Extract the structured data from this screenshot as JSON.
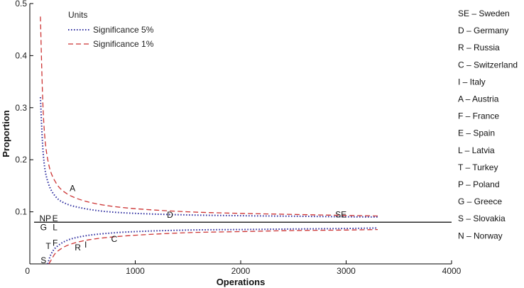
{
  "chart_data": {
    "type": "line",
    "title": "",
    "xlabel": "Operations",
    "ylabel": "Proportion",
    "xlim": [
      0,
      4000
    ],
    "ylim": [
      0,
      0.5
    ],
    "x_ticks": [
      0,
      1000,
      2000,
      3000,
      4000
    ],
    "y_ticks": [
      0.1,
      0.2,
      0.3,
      0.4,
      0.5
    ],
    "reference_line": 0.08,
    "legend_title": "Units",
    "legend_position": "top-left",
    "series": [
      {
        "name": "Significance 5%",
        "style": "dotted",
        "color": "#2a2a9e",
        "upper": {
          "x": [
            100,
            130,
            175,
            250,
            350,
            500,
            700,
            1000,
            1500,
            2000,
            2500,
            3000,
            3300
          ],
          "y": [
            0.32,
            0.205,
            0.155,
            0.128,
            0.115,
            0.107,
            0.101,
            0.097,
            0.094,
            0.0925,
            0.0915,
            0.0905,
            0.09
          ]
        },
        "lower": {
          "x": [
            170,
            200,
            250,
            350,
            500,
            700,
            1000,
            1500,
            2000,
            2500,
            3000,
            3300
          ],
          "y": [
            0.0,
            0.018,
            0.032,
            0.045,
            0.053,
            0.058,
            0.062,
            0.065,
            0.066,
            0.067,
            0.068,
            0.069
          ]
        }
      },
      {
        "name": "Significance 1%",
        "style": "dashed",
        "color": "#cc3333",
        "upper": {
          "x": [
            100,
            130,
            175,
            250,
            350,
            500,
            700,
            1000,
            1500,
            2000,
            2500,
            3000,
            3300
          ],
          "y": [
            0.475,
            0.28,
            0.195,
            0.155,
            0.135,
            0.122,
            0.113,
            0.106,
            0.1,
            0.097,
            0.095,
            0.093,
            0.092
          ]
        },
        "lower": {
          "x": [
            180,
            210,
            250,
            350,
            500,
            700,
            1000,
            1500,
            2000,
            2500,
            3000,
            3300
          ],
          "y": [
            0.0,
            0.01,
            0.022,
            0.035,
            0.044,
            0.05,
            0.055,
            0.06,
            0.062,
            0.064,
            0.065,
            0.066
          ]
        }
      }
    ],
    "points": [
      {
        "label": "SE",
        "x": 2950,
        "y": 0.095
      },
      {
        "label": "D",
        "x": 1330,
        "y": 0.094
      },
      {
        "label": "A",
        "x": 405,
        "y": 0.145
      },
      {
        "label": "N",
        "x": 120,
        "y": 0.087
      },
      {
        "label": "P",
        "x": 175,
        "y": 0.087
      },
      {
        "label": "E",
        "x": 240,
        "y": 0.087
      },
      {
        "label": "G",
        "x": 130,
        "y": 0.07
      },
      {
        "label": "L",
        "x": 240,
        "y": 0.07
      },
      {
        "label": "C",
        "x": 800,
        "y": 0.048
      },
      {
        "label": "I",
        "x": 530,
        "y": 0.037
      },
      {
        "label": "R",
        "x": 455,
        "y": 0.031
      },
      {
        "label": "F",
        "x": 240,
        "y": 0.04
      },
      {
        "label": "T",
        "x": 175,
        "y": 0.034
      },
      {
        "label": "S",
        "x": 130,
        "y": 0.007
      }
    ]
  },
  "key": [
    "SE – Sweden",
    "D – Germany",
    "R – Russia",
    "C – Switzerland",
    "I – Italy",
    "A – Austria",
    "F – France",
    "E – Spain",
    "L – Latvia",
    "T – Turkey",
    "P – Poland",
    "G – Greece",
    "S – Slovakia",
    "N – Norway"
  ]
}
